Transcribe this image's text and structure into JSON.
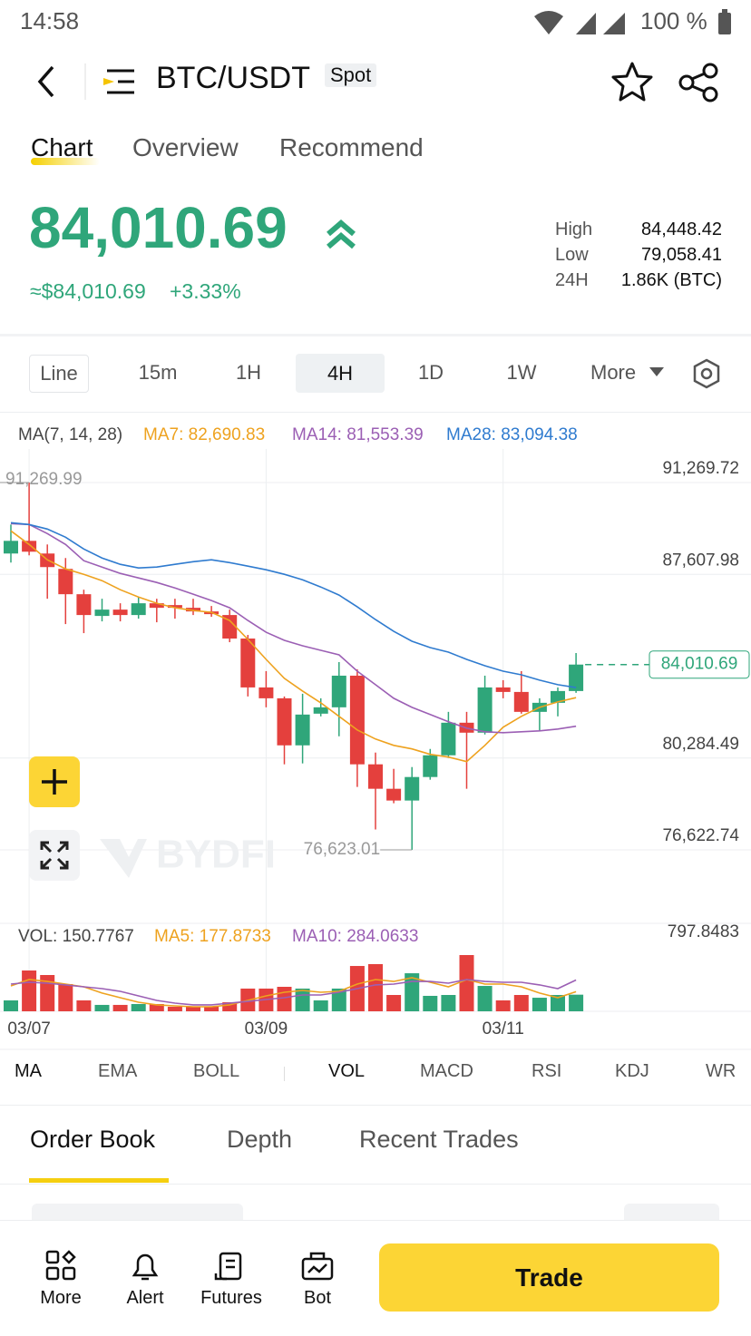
{
  "status_bar": {
    "time": "14:58",
    "battery": "100 %"
  },
  "header": {
    "pair": "BTC/USDT",
    "market": "Spot"
  },
  "tabs": [
    "Chart",
    "Overview",
    "Recommend"
  ],
  "price": {
    "last": "84,010.69",
    "fiat": "≈$84,010.69",
    "change": "+3.33%"
  },
  "stats": [
    {
      "label": "High",
      "value": "84,448.42"
    },
    {
      "label": "Low",
      "value": "79,058.41"
    },
    {
      "label": "24H",
      "value": "1.86K (BTC)"
    }
  ],
  "intervals": [
    "Line",
    "15m",
    "1H",
    "4H",
    "1D",
    "1W",
    "More"
  ],
  "chart_data": {
    "type": "candlestick",
    "legend_title": "MA(7, 14, 28)",
    "categories": [
      null,
      "03/07",
      null,
      null,
      null,
      null,
      null,
      null,
      null,
      null,
      null,
      null,
      null,
      null,
      "03/09",
      null,
      null,
      null,
      null,
      null,
      null,
      null,
      null,
      null,
      null,
      null,
      null,
      "03/11",
      null,
      null,
      null,
      null
    ],
    "up_color": "#2fa67a",
    "down_color": "#e4403d",
    "candles": {
      "open": [
        88439,
        88944,
        88439,
        87826,
        86816,
        85950,
        86202,
        85986,
        86455,
        86383,
        86274,
        86130,
        85986,
        85048,
        83099,
        82666,
        80790,
        82053,
        82306,
        83568,
        80033,
        79058,
        78589,
        79527,
        80393,
        81692,
        81295,
        83099,
        82919,
        82125,
        82486,
        82955
      ],
      "high": [
        89594,
        91269.99,
        88800,
        88259,
        86996,
        86635,
        86455,
        86707,
        86635,
        86635,
        86635,
        86347,
        86202,
        85192,
        83749,
        82739,
        82847,
        82666,
        84110,
        83821,
        80502,
        79852,
        79924,
        80646,
        82125,
        82125,
        83568,
        83388,
        83749,
        82666,
        83099,
        84471
      ],
      "low": [
        88078,
        88367,
        86635,
        85625,
        85264,
        85733,
        85733,
        85841,
        85697,
        85841,
        85986,
        85914,
        84903,
        82739,
        82306,
        80033,
        80069,
        81945,
        81151,
        79131,
        77435,
        78481,
        76623.01,
        79419,
        80285,
        79058,
        81223,
        82666,
        82053,
        81368,
        81945,
        82883
      ],
      "close": [
        88944,
        88511,
        87898,
        86816,
        85986,
        86202,
        85986,
        86455,
        86274,
        86274,
        86130,
        86022,
        85048,
        83099,
        82666,
        80790,
        82017,
        82306,
        83568,
        80033,
        79058,
        78589,
        79527,
        80393,
        81692,
        81295,
        83099,
        82919,
        82125,
        82486,
        82955,
        84010.69
      ]
    },
    "series": [
      {
        "name": "MA7: 82,690.83",
        "color": "#eea21f",
        "values": [
          89341,
          88800,
          88187,
          87826,
          87609,
          87357,
          86996,
          86707,
          86455,
          86274,
          86166,
          86094,
          85769,
          85012,
          84218,
          83460,
          82955,
          82486,
          81945,
          81404,
          81043,
          80790,
          80646,
          80429,
          80321,
          80141,
          80790,
          81512,
          81945,
          82306,
          82522,
          82690.83
        ]
      },
      {
        "name": "MA14: 81,553.39",
        "color": "#9b5fb4",
        "values": [
          89630,
          89594,
          89233,
          88800,
          88151,
          87898,
          87645,
          87465,
          87285,
          87068,
          86816,
          86563,
          86274,
          85769,
          85300,
          84976,
          84759,
          84579,
          84398,
          83749,
          83208,
          82666,
          82306,
          82017,
          81728,
          81476,
          81331,
          81295,
          81331,
          81368,
          81440,
          81553.39
        ]
      },
      {
        "name": "MA28: 83,094.38",
        "color": "#2f7bcf",
        "values": [
          89666,
          89594,
          89413,
          89089,
          88620,
          88259,
          88006,
          87862,
          87898,
          88006,
          88114,
          88187,
          88078,
          87934,
          87790,
          87609,
          87393,
          87104,
          86780,
          86310,
          85805,
          85336,
          84939,
          84687,
          84506,
          84218,
          83965,
          83749,
          83604,
          83388,
          83208,
          83094.38
        ]
      }
    ],
    "ylim": [
      73910,
      92608
    ],
    "yticks": [
      {
        "value": 91269.72,
        "label": "91,269.72"
      },
      {
        "value": 87607.98,
        "label": "87,607.98"
      },
      {
        "value": 80284.49,
        "label": "80,284.49"
      },
      {
        "value": 76622.74,
        "label": "76,622.74"
      }
    ],
    "grid": true,
    "high_label": "91,269.99",
    "low_label": "76,623.01",
    "last_price_label": "84,010.69",
    "watermark": "BYDFI",
    "volume": {
      "legend_title": "VOL: 150.7767",
      "values": [
        99,
        370,
        329,
        247,
        99,
        58,
        58,
        66,
        66,
        41,
        41,
        41,
        82,
        206,
        206,
        222,
        206,
        99,
        206,
        411,
        428,
        148,
        345,
        140,
        148,
        510,
        230,
        99,
        148,
        123,
        148,
        150.7767
      ],
      "ylim": [
        0,
        797.8483
      ],
      "yticks": [
        797.8483
      ],
      "series": [
        {
          "name": "MA5: 177.8733",
          "color": "#eea21f",
          "values": [
            230,
            288,
            271,
            247,
            222,
            165,
            123,
            82,
            58,
            49,
            41,
            41,
            58,
            99,
            140,
            173,
            189,
            173,
            181,
            247,
            288,
            271,
            304,
            263,
            222,
            288,
            247,
            247,
            222,
            165,
            123,
            177.8733
          ]
        },
        {
          "name": "MA10: 284.0633",
          "color": "#9b5fb4",
          "values": [
            247,
            263,
            255,
            239,
            222,
            206,
            181,
            140,
            99,
            74,
            58,
            58,
            74,
            90,
            107,
            123,
            148,
            148,
            173,
            206,
            239,
            247,
            271,
            271,
            255,
            288,
            271,
            263,
            263,
            239,
            206,
            284.0633
          ]
        }
      ]
    }
  },
  "indicators": [
    "MA",
    "EMA",
    "BOLL",
    "VOL",
    "MACD",
    "RSI",
    "KDJ",
    "WR"
  ],
  "order_tabs": [
    "Order Book",
    "Depth",
    "Recent Trades"
  ],
  "nav": [
    "More",
    "Alert",
    "Futures",
    "Bot"
  ],
  "trade_button": "Trade"
}
